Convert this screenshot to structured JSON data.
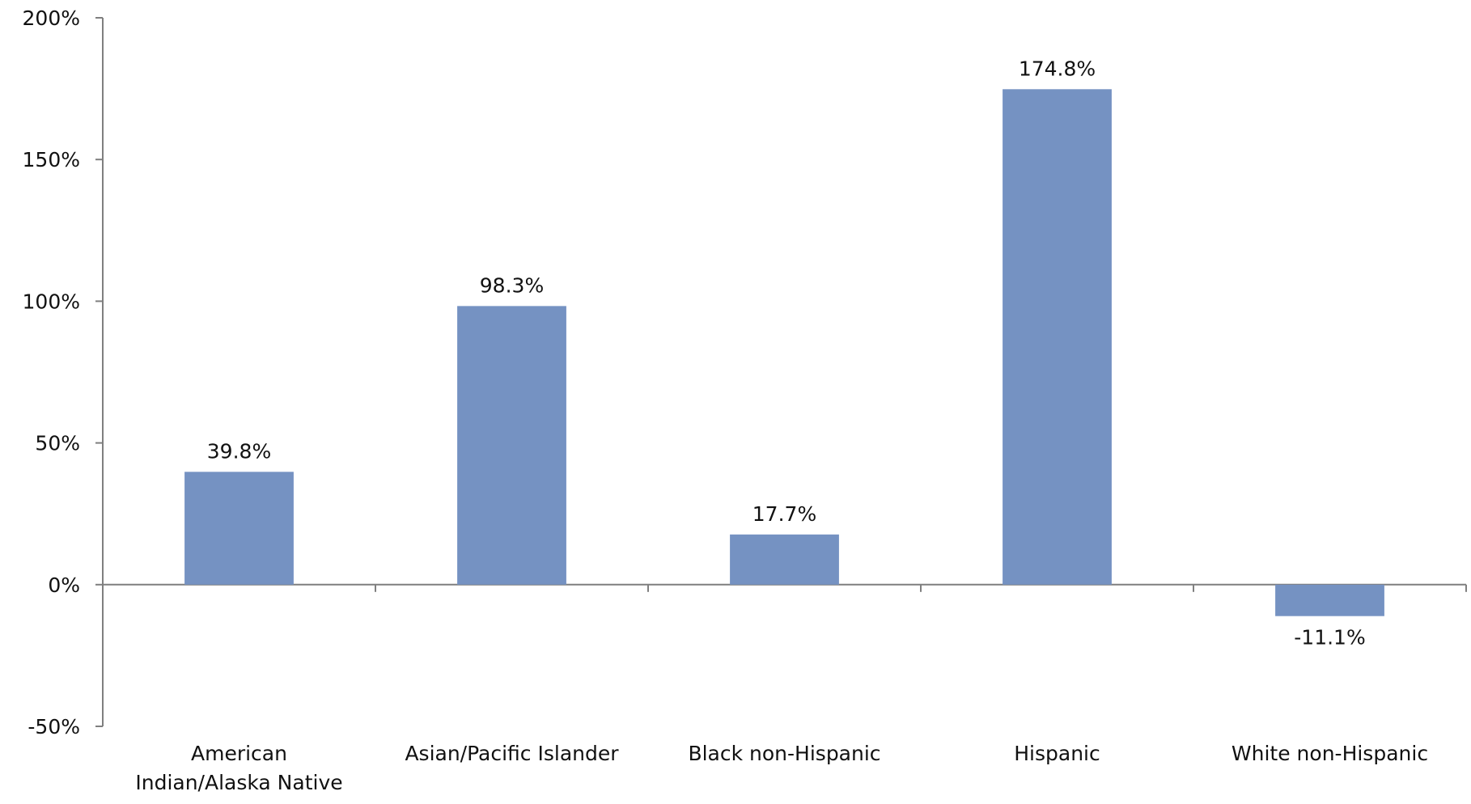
{
  "chart_data": {
    "type": "bar",
    "categories": [
      [
        "American",
        "Indian/Alaska Native"
      ],
      [
        "Asian/Pacific Islander"
      ],
      [
        "Black non-Hispanic"
      ],
      [
        "Hispanic"
      ],
      [
        "White non-Hispanic"
      ]
    ],
    "values": [
      39.8,
      98.3,
      17.7,
      174.8,
      -11.1
    ],
    "data_labels": [
      "39.8%",
      "98.3%",
      "17.7%",
      "174.8%",
      "-11.1%"
    ],
    "y_ticks": [
      -50,
      0,
      50,
      100,
      150,
      200
    ],
    "y_tick_labels": [
      "-50%",
      "0%",
      "50%",
      "100%",
      "150%",
      "200%"
    ],
    "ylim": [
      -50,
      200
    ],
    "title": "",
    "xlabel": "",
    "ylabel": "",
    "grid": false,
    "legend": "none",
    "bar_color": "#7592c2",
    "axis_color": "#7f7f7f"
  }
}
